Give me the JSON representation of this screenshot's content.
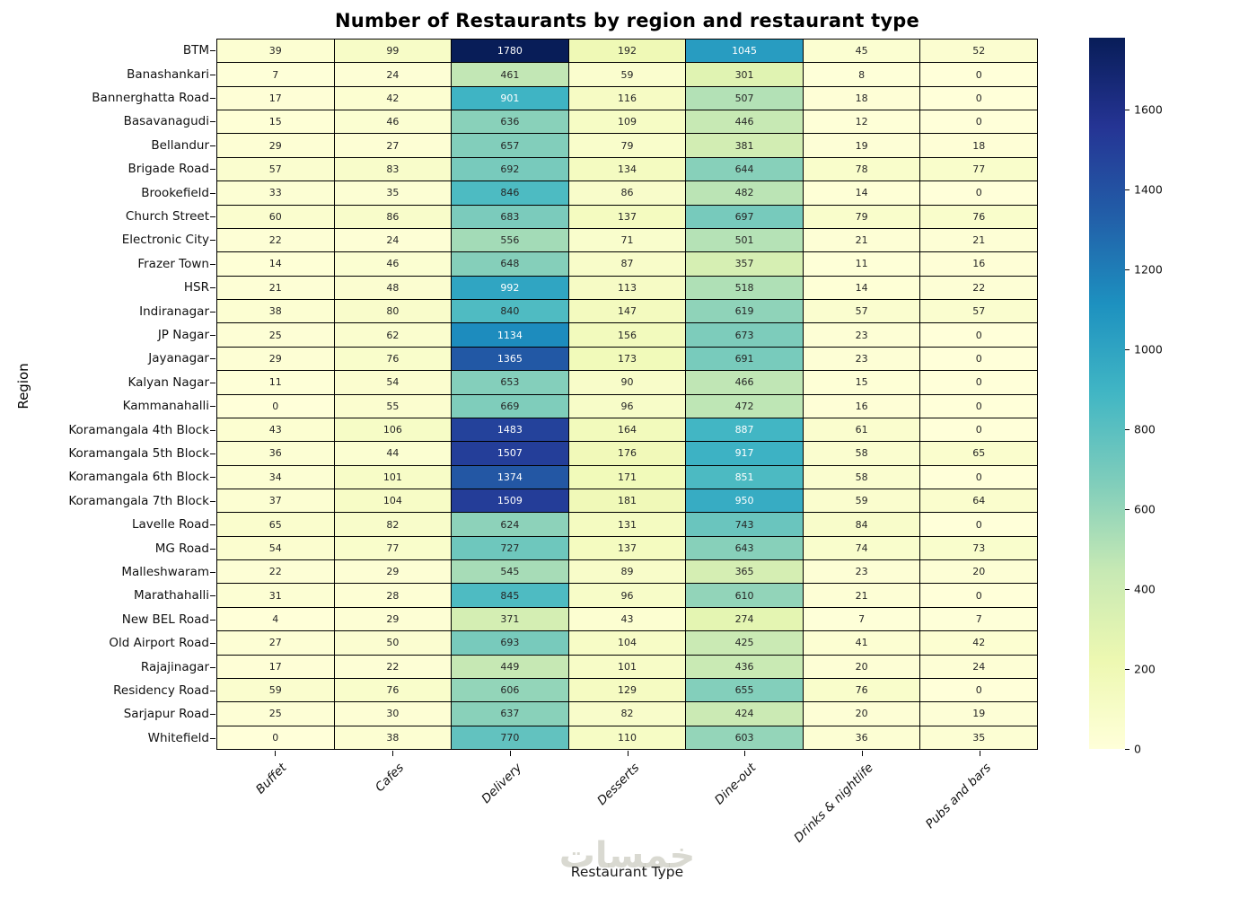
{
  "title": "Number of Restaurants by region and restaurant type",
  "watermark": "خمسات",
  "chart_data": {
    "type": "heatmap",
    "title": "Number of Restaurants by region and restaurant type",
    "xlabel": "Restaurant Type",
    "ylabel": "Region",
    "categories": [
      "Buffet",
      "Cafes",
      "Delivery",
      "Desserts",
      "Dine-out",
      "Drinks & nightlife",
      "Pubs and bars"
    ],
    "regions": [
      "BTM",
      "Banashankari",
      "Bannerghatta Road",
      "Basavanagudi",
      "Bellandur",
      "Brigade Road",
      "Brookefield",
      "Church Street",
      "Electronic City",
      "Frazer Town",
      "HSR",
      "Indiranagar",
      "JP Nagar",
      "Jayanagar",
      "Kalyan Nagar",
      "Kammanahalli",
      "Koramangala 4th Block",
      "Koramangala 5th Block",
      "Koramangala 6th Block",
      "Koramangala 7th Block",
      "Lavelle Road",
      "MG Road",
      "Malleshwaram",
      "Marathahalli",
      "New BEL Road",
      "Old Airport Road",
      "Rajajinagar",
      "Residency Road",
      "Sarjapur Road",
      "Whitefield"
    ],
    "values": [
      [
        39,
        99,
        1780,
        192,
        1045,
        45,
        52
      ],
      [
        7,
        24,
        461,
        59,
        301,
        8,
        0
      ],
      [
        17,
        42,
        901,
        116,
        507,
        18,
        0
      ],
      [
        15,
        46,
        636,
        109,
        446,
        12,
        0
      ],
      [
        29,
        27,
        657,
        79,
        381,
        19,
        18
      ],
      [
        57,
        83,
        692,
        134,
        644,
        78,
        77
      ],
      [
        33,
        35,
        846,
        86,
        482,
        14,
        0
      ],
      [
        60,
        86,
        683,
        137,
        697,
        79,
        76
      ],
      [
        22,
        24,
        556,
        71,
        501,
        21,
        21
      ],
      [
        14,
        46,
        648,
        87,
        357,
        11,
        16
      ],
      [
        21,
        48,
        992,
        113,
        518,
        14,
        22
      ],
      [
        38,
        80,
        840,
        147,
        619,
        57,
        57
      ],
      [
        25,
        62,
        1134,
        156,
        673,
        23,
        0
      ],
      [
        29,
        76,
        1365,
        173,
        691,
        23,
        0
      ],
      [
        11,
        54,
        653,
        90,
        466,
        15,
        0
      ],
      [
        0,
        55,
        669,
        96,
        472,
        16,
        0
      ],
      [
        43,
        106,
        1483,
        164,
        887,
        61,
        0
      ],
      [
        36,
        44,
        1507,
        176,
        917,
        58,
        65
      ],
      [
        34,
        101,
        1374,
        171,
        851,
        58,
        0
      ],
      [
        37,
        104,
        1509,
        181,
        950,
        59,
        64
      ],
      [
        65,
        82,
        624,
        131,
        743,
        84,
        0
      ],
      [
        54,
        77,
        727,
        137,
        643,
        74,
        73
      ],
      [
        22,
        29,
        545,
        89,
        365,
        23,
        20
      ],
      [
        31,
        28,
        845,
        96,
        610,
        21,
        0
      ],
      [
        4,
        29,
        371,
        43,
        274,
        7,
        7
      ],
      [
        27,
        50,
        693,
        104,
        425,
        41,
        42
      ],
      [
        17,
        22,
        449,
        101,
        436,
        20,
        24
      ],
      [
        59,
        76,
        606,
        129,
        655,
        76,
        0
      ],
      [
        25,
        30,
        637,
        82,
        424,
        20,
        19
      ],
      [
        0,
        38,
        770,
        110,
        603,
        36,
        35
      ]
    ],
    "vmin": 0,
    "vmax": 1780,
    "colormap": "YlGnBu",
    "colormap_stops": [
      {
        "t": 0.0,
        "color": "#ffffd9"
      },
      {
        "t": 0.125,
        "color": "#edf8b1"
      },
      {
        "t": 0.25,
        "color": "#c7e9b4"
      },
      {
        "t": 0.375,
        "color": "#7fcdbb"
      },
      {
        "t": 0.5,
        "color": "#41b6c4"
      },
      {
        "t": 0.625,
        "color": "#1d91c0"
      },
      {
        "t": 0.75,
        "color": "#225ea8"
      },
      {
        "t": 0.875,
        "color": "#253494"
      },
      {
        "t": 1.0,
        "color": "#081d58"
      }
    ],
    "annot_text_dark": "#262626",
    "annot_text_light": "#ffffff",
    "gridline_color": "#000000",
    "colorbar_ticks": [
      0,
      200,
      400,
      600,
      800,
      1000,
      1200,
      1400,
      1600
    ],
    "legend_position": "right colorbar",
    "grid": false
  }
}
